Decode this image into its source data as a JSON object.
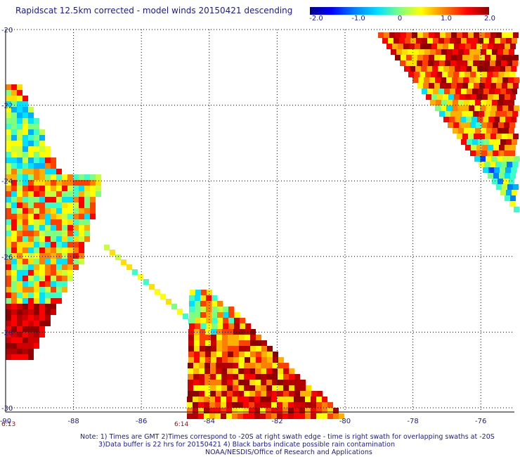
{
  "title": "Rapidscat 12.5km corrected - model winds 20150421 descending",
  "colorbar": {
    "labels": [
      "-2.0",
      "-1.0",
      "0",
      "1.0",
      "2.0"
    ],
    "range": [
      -2.0,
      2.0
    ]
  },
  "axes": {
    "x_ticks": [
      "-90",
      "-88",
      "-86",
      "-84",
      "-82",
      "-80",
      "-78",
      "-76"
    ],
    "y_ticks": [
      "-20",
      "-22",
      "-24",
      "-26",
      "-28",
      "-30"
    ]
  },
  "time_labels": [
    "6:13",
    "6:14"
  ],
  "notes": [
    "Note: 1) Times are GMT 2)Times correspond to -20S at right swath edge - time is right swath for overlapping swaths at -20S",
    "3)Data buffer is 22 hrs for 20150421 4) Black barbs indicate possible rain contamination",
    "NOAA/NESDIS/Office of Research and Applications"
  ],
  "colors": {
    "text": "#1a1a8a",
    "grid": "#000000",
    "time_label": "#8a1010"
  }
}
